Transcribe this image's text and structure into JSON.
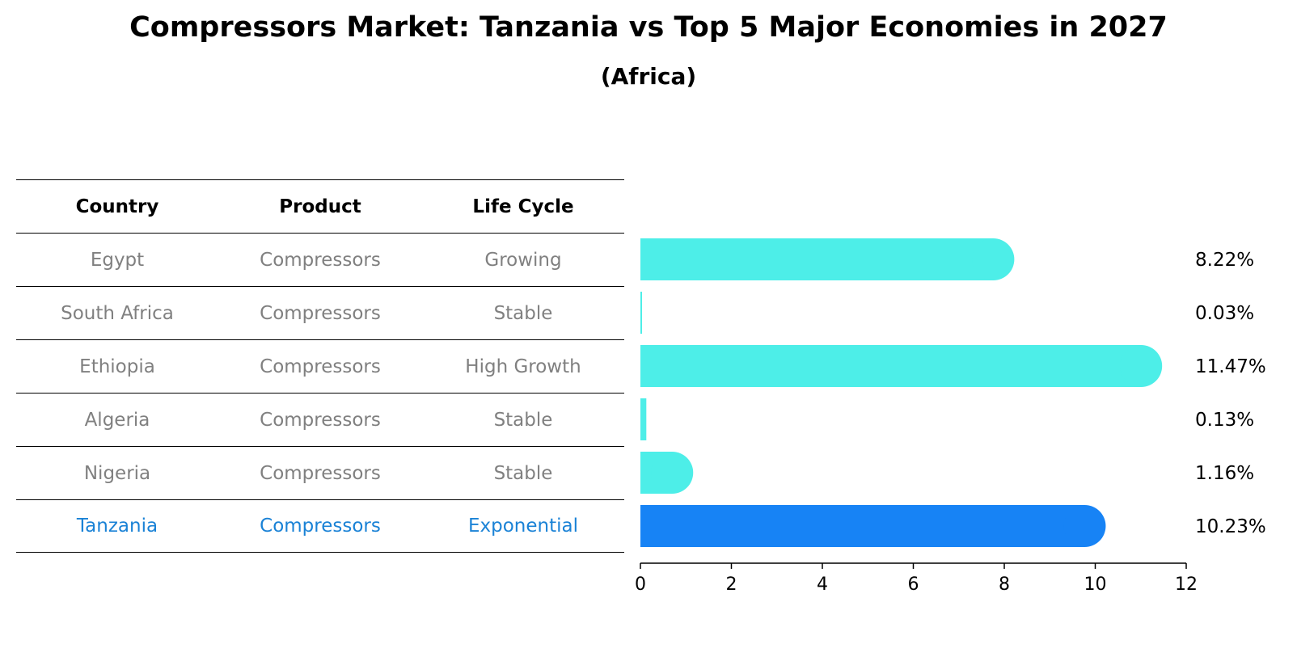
{
  "title": "Compressors Market: Tanzania vs Top 5 Major Economies in 2027",
  "subtitle": "(Africa)",
  "table": {
    "headers": [
      "Country",
      "Product",
      "Life Cycle"
    ],
    "rows": [
      {
        "country": "Egypt",
        "product": "Compressors",
        "life_cycle": "Growing"
      },
      {
        "country": "South Africa",
        "product": "Compressors",
        "life_cycle": "Stable"
      },
      {
        "country": "Ethiopia",
        "product": "Compressors",
        "life_cycle": "High Growth"
      },
      {
        "country": "Algeria",
        "product": "Compressors",
        "life_cycle": "Stable"
      },
      {
        "country": "Nigeria",
        "product": "Compressors",
        "life_cycle": "Stable"
      },
      {
        "country": "Tanzania",
        "product": "Compressors",
        "life_cycle": "Exponential"
      }
    ]
  },
  "chart_data": {
    "type": "bar",
    "orientation": "horizontal",
    "categories": [
      "Egypt",
      "South Africa",
      "Ethiopia",
      "Algeria",
      "Nigeria",
      "Tanzania"
    ],
    "values": [
      8.22,
      0.03,
      11.47,
      0.13,
      1.16,
      10.23
    ],
    "value_labels": [
      "8.22%",
      "0.03%",
      "11.47%",
      "0.13%",
      "1.16%",
      "10.23%"
    ],
    "highlight": "Tanzania",
    "xlim": [
      0,
      12
    ],
    "xticks": [
      0,
      2,
      4,
      6,
      8,
      10,
      12
    ],
    "grid": false,
    "colors": {
      "default": "#4deee8",
      "highlight": "#1783f5"
    }
  }
}
